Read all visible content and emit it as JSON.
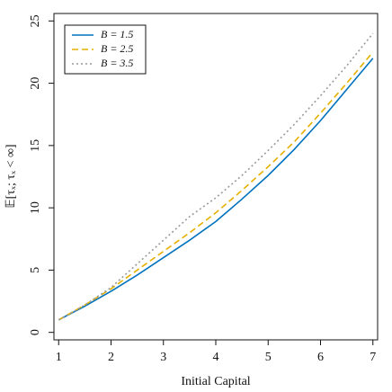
{
  "chart_data": {
    "type": "line",
    "xlabel": "Initial Capital",
    "ylabel": "𝔼[τₓ; τₓ < ∞]",
    "x": [
      1,
      1.5,
      2,
      2.5,
      3,
      3.5,
      4,
      4.5,
      5,
      5.5,
      6,
      6.5,
      7
    ],
    "series": [
      {
        "name": "B = 1.5",
        "color": "#0072bd",
        "dash": "solid",
        "values": [
          1,
          2.1,
          3.3,
          4.6,
          6.0,
          7.4,
          8.9,
          10.7,
          12.6,
          14.7,
          17,
          19.5,
          22
        ]
      },
      {
        "name": "B = 2.5",
        "color": "#e6b000",
        "dash": "dashed",
        "values": [
          1,
          2.2,
          3.5,
          5.0,
          6.5,
          8.0,
          9.6,
          11.4,
          13.3,
          15.3,
          17.6,
          20,
          22.5
        ]
      },
      {
        "name": "B = 3.5",
        "color": "#999999",
        "dash": "dotted",
        "values": [
          1,
          2.2,
          3.6,
          5.5,
          7.4,
          9.3,
          10.8,
          12.6,
          14.6,
          16.7,
          19,
          21.4,
          24
        ]
      }
    ],
    "xlim": [
      0.91,
      7.09
    ],
    "ylim": [
      -0.6,
      25.6
    ],
    "xticks": [
      1,
      2,
      3,
      4,
      5,
      6,
      7
    ],
    "yticks": [
      0,
      5,
      10,
      15,
      20,
      25
    ],
    "legend": "top-left"
  }
}
